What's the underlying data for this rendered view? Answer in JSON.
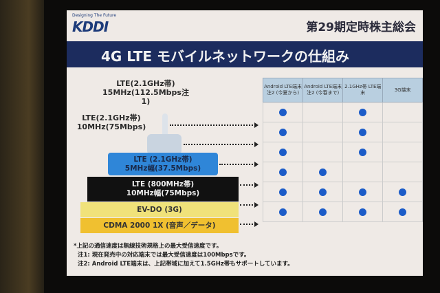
{
  "header": {
    "logo_tagline": "Designing The Future",
    "logo": "KDDI",
    "meeting": "第29期定時株主総会",
    "title": "4G LTE モバイルネットワークの仕組み"
  },
  "layers": [
    {
      "line1": "LTE(2.1GHz帯)",
      "line2": "15MHz(112.5Mbps注1)"
    },
    {
      "line1": "LTE(2.1GHz帯)",
      "line2": "10MHz(75Mbps)"
    },
    {
      "line1": "LTE (2.1GHz帯)",
      "line2": "5MHz幅(37.5Mbps)",
      "color": "#2f86d8"
    },
    {
      "line1": "LTE (800MHz帯)",
      "line2": "10MHz幅(75Mbps)",
      "color": "#111111"
    },
    {
      "line1": "EV-DO (3G)",
      "color": "#f0e27a"
    },
    {
      "line1": "CDMA 2000 1X (音声／データ)",
      "color": "#f0c030"
    }
  ],
  "table": {
    "headers": [
      "Android LTE端末注2 (今夏から)",
      "Android LTE端末注2 (今春まで)",
      "2.1GHz帯 LTE端末",
      "3G端末"
    ],
    "support": [
      [
        true,
        false,
        true,
        false
      ],
      [
        true,
        false,
        true,
        false
      ],
      [
        true,
        false,
        true,
        false
      ],
      [
        true,
        true,
        false,
        false
      ],
      [
        true,
        true,
        true,
        true
      ],
      [
        true,
        true,
        true,
        true
      ]
    ],
    "dot_color": "#1c5cc8"
  },
  "notes": [
    "*上記の通信速度は無線技術規格上の最大受信速度です。",
    "注1: 現在発売中の対応端末では最大受信速度は100Mbpsです。",
    "注2: Android LTE端末は、上記帯域に加えて1.5GHz帯もサポートしています。"
  ]
}
